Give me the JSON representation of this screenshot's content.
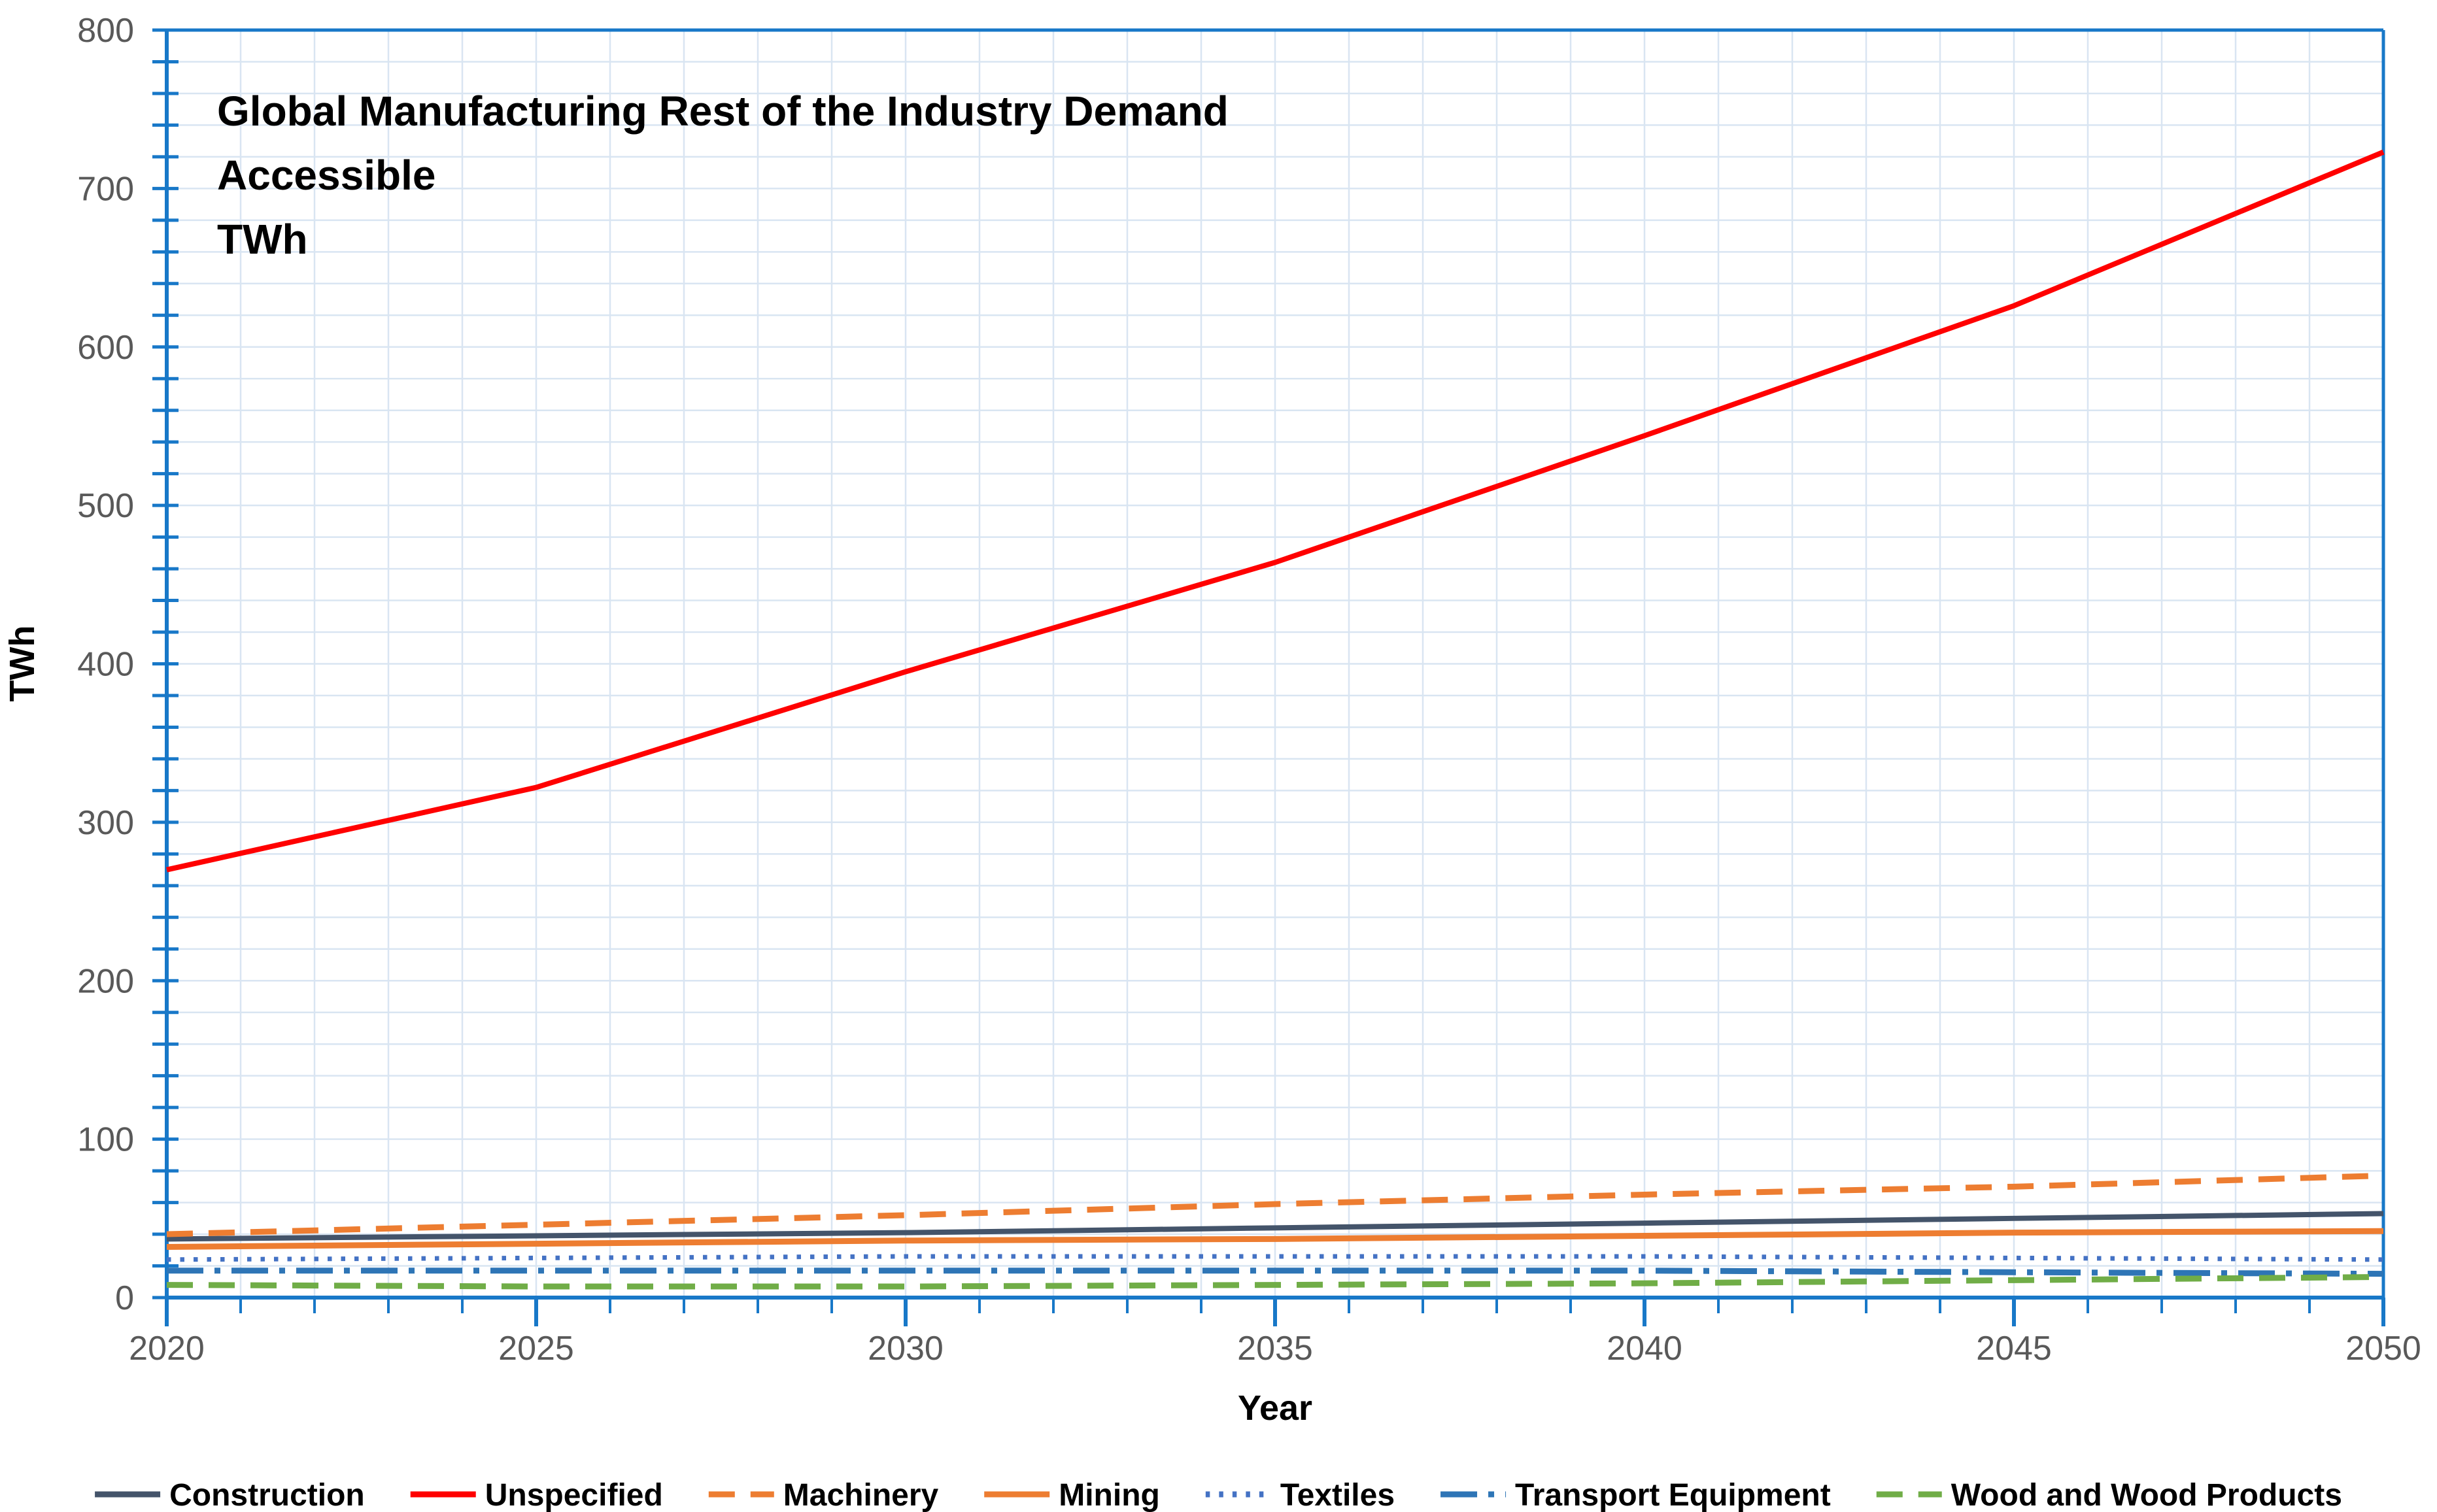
{
  "chart_data": {
    "type": "line",
    "title": "Global Manufacturing Rest of the Industry Demand Accessible TWh",
    "title_lines": [
      "Global Manufacturing Rest of the Industry Demand",
      "Accessible",
      "TWh"
    ],
    "xlabel": "Year",
    "ylabel": "TWh",
    "x": [
      2020,
      2025,
      2030,
      2035,
      2040,
      2045,
      2050
    ],
    "x_tick_labels": [
      "2020",
      "2025",
      "2030",
      "2035",
      "2040",
      "2045",
      "2050"
    ],
    "y_ticks": [
      0,
      100,
      200,
      300,
      400,
      500,
      600,
      700,
      800
    ],
    "y_tick_labels": [
      "0",
      "100",
      "200",
      "300",
      "400",
      "500",
      "600",
      "700",
      "800"
    ],
    "xlim": [
      2020,
      2050
    ],
    "ylim": [
      0,
      800
    ],
    "grid": {
      "shown": true,
      "horizontal_step": 20,
      "vertical_step_years": 1,
      "color": "#D9E5F2"
    },
    "legend_position": "bottom",
    "series": [
      {
        "name": "Construction",
        "color": "#44546A",
        "dash": "solid",
        "width": 8,
        "values": [
          37,
          39,
          41,
          44,
          47,
          50,
          53
        ]
      },
      {
        "name": "Unspecified",
        "color": "#FF0000",
        "dash": "solid",
        "width": 8,
        "values": [
          270,
          322,
          395,
          464,
          544,
          626,
          723
        ]
      },
      {
        "name": "Machinery",
        "color": "#ED7D31",
        "dash": "dashed",
        "width": 9,
        "values": [
          40,
          46,
          52,
          59,
          65,
          70,
          77
        ]
      },
      {
        "name": "Mining",
        "color": "#ED7D31",
        "dash": "solid",
        "width": 9,
        "values": [
          32,
          34,
          36,
          37,
          39,
          41,
          42
        ]
      },
      {
        "name": "Textiles",
        "color": "#4472C4",
        "dash": "dotted",
        "width": 7,
        "values": [
          24,
          25,
          26,
          26,
          26,
          25,
          24
        ]
      },
      {
        "name": "Transport Equipment",
        "color": "#2E75B6",
        "dash": "dashdot",
        "width": 9,
        "values": [
          17,
          17,
          17,
          17,
          17,
          16,
          15
        ]
      },
      {
        "name": "Wood and Wood Products",
        "color": "#70AD47",
        "dash": "dashed",
        "width": 9,
        "values": [
          8,
          7,
          7,
          8,
          9,
          11,
          13
        ]
      }
    ],
    "colors": {
      "axis": "#1878C8",
      "grid": "#D9E5F2",
      "tick_text": "#595959",
      "title_text": "#000000"
    }
  }
}
